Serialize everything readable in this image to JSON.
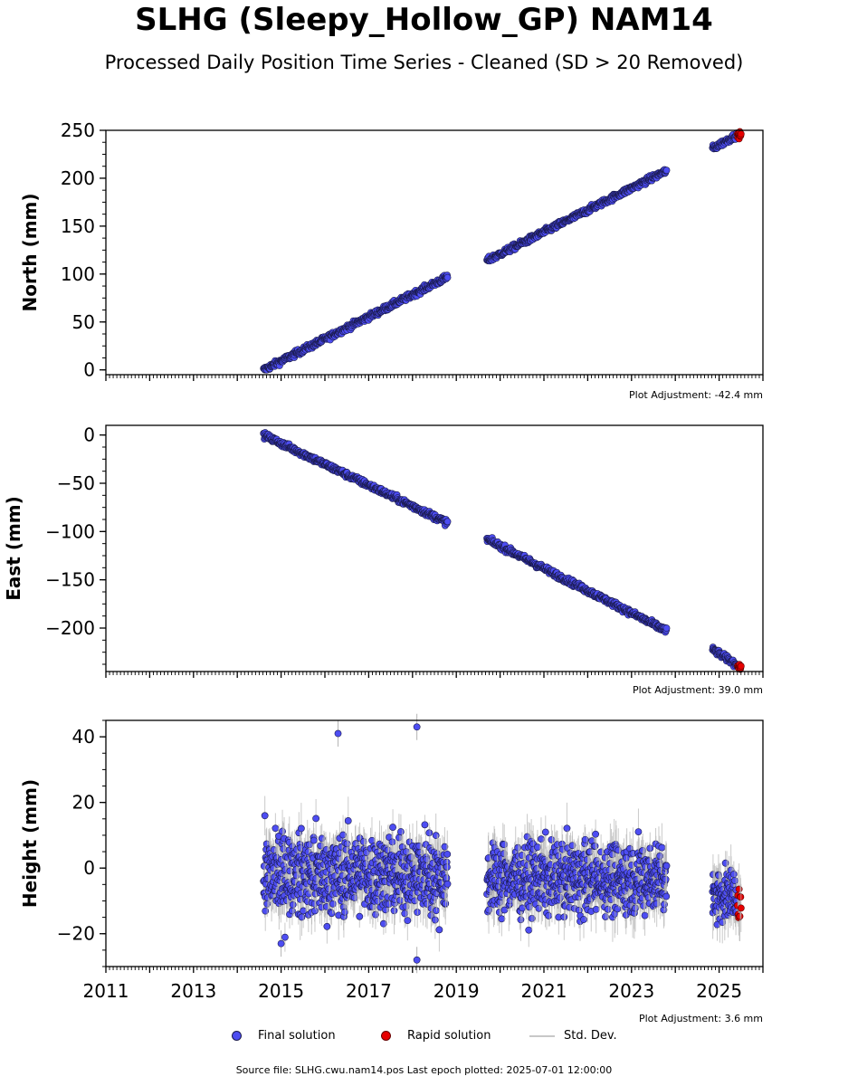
{
  "title": "SLHG (Sleepy_Hollow_GP) NAM14",
  "subtitle": "Processed Daily Position Time Series - Cleaned (SD > 20 Removed)",
  "legend": {
    "final_label": "Final solution",
    "rapid_label": "Rapid solution",
    "stddev_label": "Std. Dev."
  },
  "footer": "Source file: SLHG.cwu.nam14.pos  Last epoch plotted: 2025-07-01 12:00:00",
  "colors": {
    "final": "#4d4df2",
    "final_edge": "#1a1a4d",
    "rapid": "#e60000",
    "stddev": "#b4b4b4"
  },
  "chart_data": [
    {
      "type": "scatter",
      "ylabel": "North (mm)",
      "adjustment": "Plot Adjustment: -42.4 mm",
      "xlim": [
        2011,
        2026
      ],
      "ylim": [
        -5,
        250
      ],
      "yticks": [
        0,
        50,
        100,
        150,
        200,
        250
      ],
      "ytick_labels": [
        "0",
        "50",
        "100",
        "150",
        "200",
        "250"
      ],
      "series": [
        {
          "name": "Final solution",
          "segments": [
            {
              "x": [
                2014.6,
                2018.8
              ],
              "y": [
                0,
                97
              ]
            },
            {
              "x": [
                2019.7,
                2023.8
              ],
              "y": [
                114,
                208
              ]
            },
            {
              "x": [
                2024.85,
                2025.4
              ],
              "y": [
                231,
                245
              ]
            }
          ]
        },
        {
          "name": "Rapid solution",
          "segments": [
            {
              "x": [
                2025.42,
                2025.5
              ],
              "y": [
                244,
                246
              ]
            }
          ]
        }
      ]
    },
    {
      "type": "scatter",
      "ylabel": "East (mm)",
      "adjustment": "Plot Adjustment: 39.0 mm",
      "xlim": [
        2011,
        2026
      ],
      "ylim": [
        -245,
        10
      ],
      "yticks": [
        0,
        -50,
        -100,
        -150,
        -200
      ],
      "ytick_labels": [
        "0",
        "−50",
        "−100",
        "−150",
        "−200"
      ],
      "series": [
        {
          "name": "Final solution",
          "segments": [
            {
              "x": [
                2014.6,
                2018.8
              ],
              "y": [
                0,
                -91
              ]
            },
            {
              "x": [
                2019.7,
                2023.8
              ],
              "y": [
                -108,
                -203
              ]
            },
            {
              "x": [
                2024.85,
                2025.4
              ],
              "y": [
                -222,
                -238
              ]
            }
          ]
        },
        {
          "name": "Rapid solution",
          "segments": [
            {
              "x": [
                2025.42,
                2025.5
              ],
              "y": [
                -238,
                -241
              ]
            }
          ]
        }
      ]
    },
    {
      "type": "scatter",
      "ylabel": "Height (mm)",
      "adjustment": "Plot Adjustment: 3.6 mm",
      "xlim": [
        2011,
        2026
      ],
      "ylim": [
        -30,
        45
      ],
      "yticks": [
        -20,
        0,
        20,
        40
      ],
      "ytick_labels": [
        "−20",
        "0",
        "20",
        "40"
      ],
      "xticks": [
        2011,
        2013,
        2015,
        2017,
        2019,
        2021,
        2023,
        2025
      ],
      "xtick_labels": [
        "2011",
        "2013",
        "2015",
        "2017",
        "2019",
        "2021",
        "2023",
        "2025"
      ],
      "series": [
        {
          "name": "Final solution",
          "segments": [
            {
              "x": [
                2014.6,
                2018.8
              ],
              "y_center": -2,
              "y_spread": 8
            },
            {
              "x": [
                2019.7,
                2023.8
              ],
              "y_center": -3,
              "y_spread": 7
            },
            {
              "x": [
                2024.85,
                2025.4
              ],
              "y_center": -8,
              "y_spread": 5
            }
          ],
          "outliers": [
            {
              "x": 2016.3,
              "y": 41
            },
            {
              "x": 2018.1,
              "y": 43
            },
            {
              "x": 2018.1,
              "y": -28
            },
            {
              "x": 2015.0,
              "y": -23
            }
          ]
        },
        {
          "name": "Rapid solution",
          "segments": [
            {
              "x": [
                2025.42,
                2025.5
              ],
              "y_center": -12,
              "y_spread": 4
            }
          ]
        }
      ]
    }
  ]
}
